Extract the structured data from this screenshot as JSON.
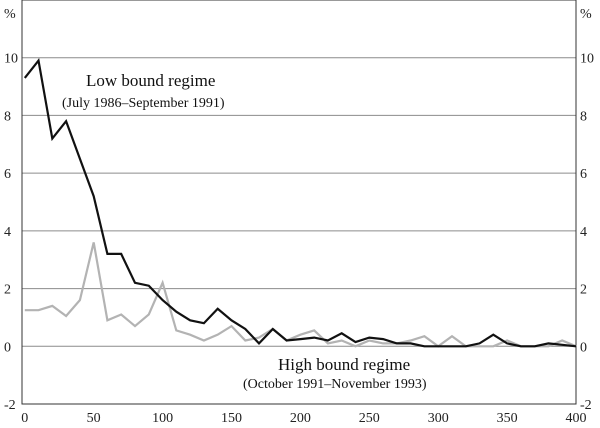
{
  "chart_data": {
    "type": "line",
    "title": "",
    "xlabel": "",
    "ylabel": "%",
    "y_unit_left": "%",
    "y_unit_right": "%",
    "xlim": [
      -2,
      400
    ],
    "ylim": [
      -2,
      12
    ],
    "x_ticks": [
      0,
      50,
      100,
      150,
      200,
      250,
      300,
      350,
      400
    ],
    "y_ticks": [
      -2,
      0,
      2,
      4,
      6,
      8,
      10
    ],
    "grid": "horizontal",
    "x": [
      0,
      10,
      20,
      30,
      40,
      50,
      60,
      70,
      80,
      90,
      100,
      110,
      120,
      130,
      140,
      150,
      160,
      170,
      180,
      190,
      200,
      210,
      220,
      230,
      240,
      250,
      260,
      270,
      280,
      290,
      300,
      310,
      320,
      330,
      340,
      350,
      360,
      370,
      380,
      390,
      400
    ],
    "series": [
      {
        "name": "Low bound regime",
        "color": "#111111",
        "values": [
          9.3,
          9.9,
          7.2,
          7.8,
          6.5,
          5.2,
          3.2,
          3.2,
          2.2,
          2.1,
          1.6,
          1.2,
          0.9,
          0.8,
          1.3,
          0.9,
          0.6,
          0.1,
          0.6,
          0.2,
          0.25,
          0.3,
          0.2,
          0.45,
          0.15,
          0.3,
          0.25,
          0.1,
          0.1,
          0.0,
          0.0,
          0.0,
          0.0,
          0.1,
          0.4,
          0.1,
          0.0,
          0.0,
          0.1,
          0.05,
          0.0
        ]
      },
      {
        "name": "High bound regime",
        "color": "#b3b3b3",
        "values": [
          1.25,
          1.25,
          1.4,
          1.05,
          1.6,
          3.6,
          0.9,
          1.1,
          0.7,
          1.1,
          2.2,
          0.55,
          0.4,
          0.2,
          0.4,
          0.7,
          0.2,
          0.3,
          0.6,
          0.2,
          0.4,
          0.55,
          0.1,
          0.2,
          0.0,
          0.2,
          0.1,
          0.1,
          0.2,
          0.35,
          0.0,
          0.35,
          0.0,
          0.0,
          0.0,
          0.2,
          0.0,
          0.0,
          0.0,
          0.2,
          0.0
        ]
      }
    ],
    "annotations": {
      "low_title": "Low bound regime",
      "low_period": "(July 1986–September 1991)",
      "high_title": "High bound regime",
      "high_period": "(October 1991–November 1993)"
    }
  }
}
